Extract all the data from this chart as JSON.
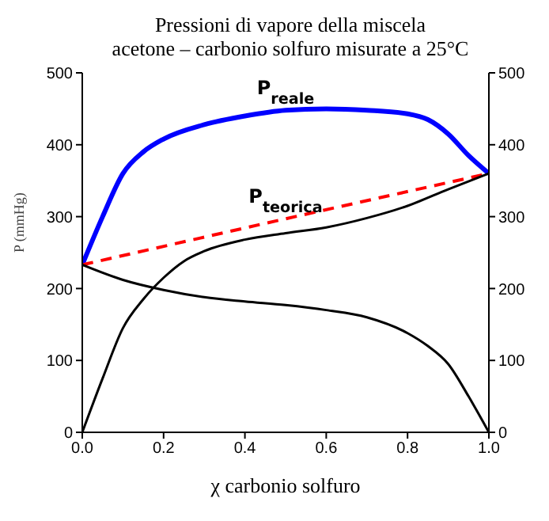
{
  "chart_data": {
    "type": "line",
    "title": "Pressioni di vapore della miscela\nacetone – carbonio solfuro misurate a 25°C",
    "xlabel": "χ carbonio solfuro",
    "ylabel": "P (mmHg)",
    "series": [
      {
        "name": "P$_{reale}$",
        "color": "#0000ff",
        "x": [
          0,
          0.05,
          0.1,
          0.15,
          0.2,
          0.3,
          0.4,
          0.5,
          0.6,
          0.7,
          0.8,
          0.85,
          0.9,
          0.95,
          1.0
        ],
        "values": [
          233,
          300,
          360,
          390,
          408,
          428,
          440,
          448,
          450,
          448,
          443,
          435,
          415,
          385,
          360
        ]
      },
      {
        "name": "P$_{teorica}$",
        "color": "#ff0000",
        "line_style": "dashed",
        "x": [
          0,
          0.5,
          1.0
        ],
        "values": [
          233,
          297,
          360
        ]
      },
      {
        "color": "#000000",
        "x": [
          0,
          0.05,
          0.1,
          0.15,
          0.2,
          0.25,
          0.3,
          0.4,
          0.5,
          0.6,
          0.7,
          0.8,
          0.9,
          1.0
        ],
        "values": [
          0,
          75,
          145,
          185,
          215,
          238,
          252,
          268,
          277,
          285,
          298,
          315,
          338,
          360
        ]
      },
      {
        "color": "#000000",
        "x": [
          0,
          0.1,
          0.2,
          0.3,
          0.4,
          0.5,
          0.6,
          0.7,
          0.8,
          0.85,
          0.9,
          0.95,
          1.0
        ],
        "values": [
          233,
          212,
          198,
          188,
          182,
          177,
          170,
          160,
          138,
          120,
          95,
          50,
          0
        ]
      }
    ],
    "xlim": [
      0,
      1
    ],
    "xticks": [
      {
        "value": 0,
        "label": "0.0"
      },
      0.2,
      0.4,
      0.6,
      0.8,
      {
        "value": 1,
        "label": "1.0"
      }
    ],
    "ylim": [
      0,
      500
    ],
    "yticks": [
      0,
      100,
      200,
      300,
      400,
      500
    ],
    "y2lim": [
      0,
      500
    ],
    "y2ticks": [
      0,
      100,
      200,
      300,
      400,
      500
    ],
    "grid": false,
    "marker": "none",
    "line_style": "solid"
  }
}
